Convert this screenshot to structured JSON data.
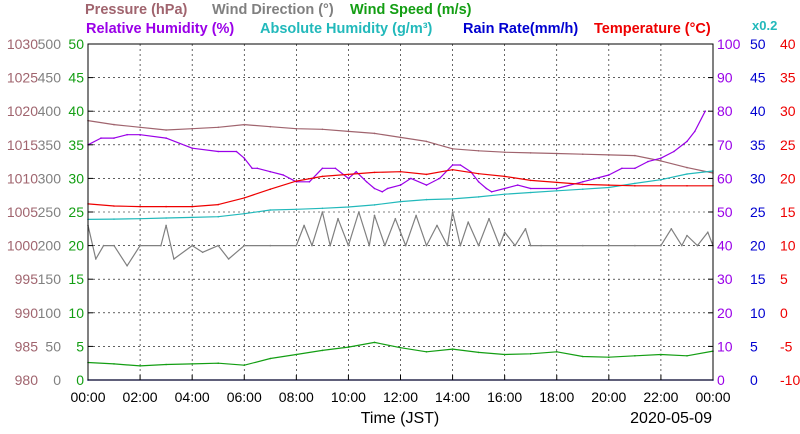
{
  "legend_row1": {
    "pressure": "Pressure (hPa)",
    "wind_direction": "Wind Direction (°)",
    "wind_speed": "Wind Speed (m/s)"
  },
  "legend_row2": {
    "relative_humidity": "Relative Humidity (%)",
    "absolute_humidity": "Absolute Humidity (g/m³)",
    "rain_rate": "Rain Rate(mm/h)",
    "temperature": "Temperature (°C)",
    "multiplier": "x0.2"
  },
  "date_label": "2020-05-09",
  "chart_data": {
    "type": "line",
    "xlabel": "Time (JST)",
    "x_ticks": [
      "00:00",
      "02:00",
      "04:00",
      "06:00",
      "08:00",
      "10:00",
      "12:00",
      "14:00",
      "16:00",
      "18:00",
      "20:00",
      "22:00",
      "00:00"
    ],
    "xlim_hours": [
      0,
      24
    ],
    "grid": true,
    "axes": {
      "pressure": {
        "ticks": [
          980,
          985,
          990,
          995,
          1000,
          1005,
          1010,
          1015,
          1020,
          1025,
          1030
        ],
        "color": "#a0646e"
      },
      "wind_direction": {
        "ticks": [
          0,
          50,
          100,
          150,
          200,
          250,
          300,
          350,
          400,
          450,
          500
        ],
        "color": "#808080"
      },
      "wind_speed": {
        "ticks": [
          0,
          5,
          10,
          15,
          20,
          25,
          30,
          35,
          40,
          45,
          50
        ],
        "color": "#139e13"
      },
      "relative_humidity": {
        "ticks": [
          0,
          10,
          20,
          30,
          40,
          50,
          60,
          70,
          80,
          90,
          100
        ],
        "color": "#9a00e8"
      },
      "rain_rate": {
        "ticks": [
          0,
          5,
          10,
          15,
          20,
          25,
          30,
          35,
          40,
          45,
          50
        ],
        "color": "#0000d0"
      },
      "temperature": {
        "ticks": [
          -10,
          -5,
          0,
          5,
          10,
          15,
          20,
          25,
          30,
          35,
          40
        ],
        "color": "#ee0000"
      }
    },
    "series": [
      {
        "name": "Pressure (hPa)",
        "axis": "pressure",
        "color": "#a0646e",
        "x": [
          0,
          1,
          2,
          3,
          4,
          5,
          6,
          7,
          8,
          9,
          10,
          11,
          12,
          13,
          14,
          15,
          16,
          17,
          18,
          19,
          20,
          21,
          22,
          23,
          24
        ],
        "y": [
          1018.6,
          1018,
          1017.6,
          1017.2,
          1017.4,
          1017.6,
          1018,
          1017.7,
          1017.4,
          1017.3,
          1017,
          1016.7,
          1016.1,
          1015.5,
          1014.4,
          1014.1,
          1013.9,
          1013.8,
          1013.7,
          1013.6,
          1013.5,
          1013.4,
          1012.6,
          1011.6,
          1010.8
        ]
      },
      {
        "name": "Wind Direction (°)",
        "axis": "wind_direction",
        "color": "#808080",
        "x": [
          0,
          0.3,
          0.6,
          1,
          1.5,
          2,
          2.8,
          3,
          3.3,
          4,
          4.4,
          5,
          5.4,
          6,
          7,
          8,
          8.3,
          8.6,
          9,
          9.3,
          9.6,
          10,
          10.4,
          10.8,
          11,
          11.4,
          11.8,
          12.2,
          12.6,
          13,
          13.4,
          13.8,
          14,
          14.3,
          14.6,
          15,
          15.4,
          15.8,
          16,
          16.4,
          16.8,
          17,
          17.4,
          18,
          19,
          20,
          21,
          22,
          22.4,
          22.8,
          23,
          23.4,
          23.8,
          24
        ],
        "y": [
          230,
          180,
          200,
          200,
          170,
          200,
          200,
          230,
          180,
          200,
          190,
          200,
          180,
          200,
          200,
          200,
          230,
          200,
          250,
          200,
          240,
          200,
          250,
          200,
          245,
          200,
          240,
          200,
          245,
          200,
          230,
          200,
          250,
          200,
          235,
          200,
          240,
          200,
          220,
          200,
          225,
          200,
          200,
          200,
          200,
          200,
          200,
          200,
          225,
          200,
          215,
          200,
          220,
          200
        ]
      },
      {
        "name": "Wind Speed (m/s)",
        "axis": "wind_speed",
        "color": "#139e13",
        "x": [
          0,
          1,
          2,
          3,
          4,
          5,
          6,
          7,
          8,
          9,
          10,
          11,
          12,
          13,
          14,
          15,
          16,
          17,
          18,
          19,
          20,
          21,
          22,
          23,
          24
        ],
        "y": [
          2.6,
          2.4,
          2.1,
          2.3,
          2.4,
          2.5,
          2.2,
          3.2,
          3.8,
          4.4,
          4.9,
          5.6,
          4.8,
          4.2,
          4.6,
          4.1,
          3.8,
          3.9,
          4.2,
          3.5,
          3.4,
          3.6,
          3.8,
          3.6,
          4.3
        ]
      },
      {
        "name": "Relative Humidity (%)",
        "axis": "relative_humidity",
        "color": "#9a00e8",
        "x": [
          0,
          0.5,
          1,
          1.5,
          2,
          3,
          4,
          5,
          5.7,
          6,
          6.3,
          6.5,
          7,
          7.5,
          8,
          8.5,
          9,
          9.5,
          10,
          10.3,
          10.7,
          11,
          11.3,
          11.5,
          12,
          12.4,
          13,
          13.5,
          14,
          14.3,
          14.7,
          15,
          15.3,
          15.5,
          16,
          16.5,
          17,
          18,
          19,
          20,
          20.5,
          21,
          21.5,
          22,
          22.5,
          23,
          23.3,
          23.7
        ],
        "y": [
          70,
          72,
          72,
          73,
          73,
          72,
          69,
          68,
          68,
          66,
          63,
          63,
          62,
          61,
          59,
          59,
          63,
          63,
          60,
          62,
          59,
          57,
          56,
          57,
          58,
          60,
          58,
          60,
          64,
          64,
          62,
          59,
          57,
          56,
          57,
          58,
          57,
          57,
          59,
          61,
          63,
          63,
          65,
          66,
          68,
          71,
          74,
          80
        ]
      },
      {
        "name": "Absolute Humidity (g/m³)",
        "axis": "relative_humidity",
        "color": "#22b9bb",
        "x": [
          0,
          1,
          2,
          3,
          4,
          5,
          6,
          7,
          8,
          9,
          10,
          11,
          12,
          13,
          14,
          15,
          16,
          17,
          18,
          19,
          20,
          21,
          22,
          23,
          24
        ],
        "y": [
          47.8,
          47.9,
          48,
          48.2,
          48.4,
          48.6,
          49.5,
          50.6,
          50.8,
          51.1,
          51.5,
          52.1,
          53.1,
          53.7,
          53.9,
          54.5,
          55.3,
          55.8,
          56.3,
          56.8,
          57.3,
          58.5,
          59.6,
          61.3,
          62.2
        ]
      },
      {
        "name": "Rain Rate(mm/h)",
        "axis": "rain_rate",
        "color": "#0000d0",
        "x": [
          0,
          24
        ],
        "y": [
          0,
          0
        ]
      },
      {
        "name": "Temperature (°C)",
        "axis": "temperature",
        "color": "#ee0000",
        "x": [
          0,
          1,
          2,
          3,
          4,
          5,
          6,
          7,
          8,
          9,
          10,
          11,
          12,
          13,
          14,
          15,
          16,
          17,
          18,
          19,
          20,
          21,
          22,
          23,
          24
        ],
        "y": [
          16.2,
          15.9,
          15.8,
          15.8,
          15.8,
          16.1,
          17.1,
          18.4,
          19.6,
          20.3,
          20.6,
          20.9,
          21,
          20.6,
          21.3,
          20.7,
          20.3,
          19.7,
          19.4,
          19.1,
          19,
          18.9,
          18.9,
          18.9,
          18.9
        ]
      }
    ]
  }
}
